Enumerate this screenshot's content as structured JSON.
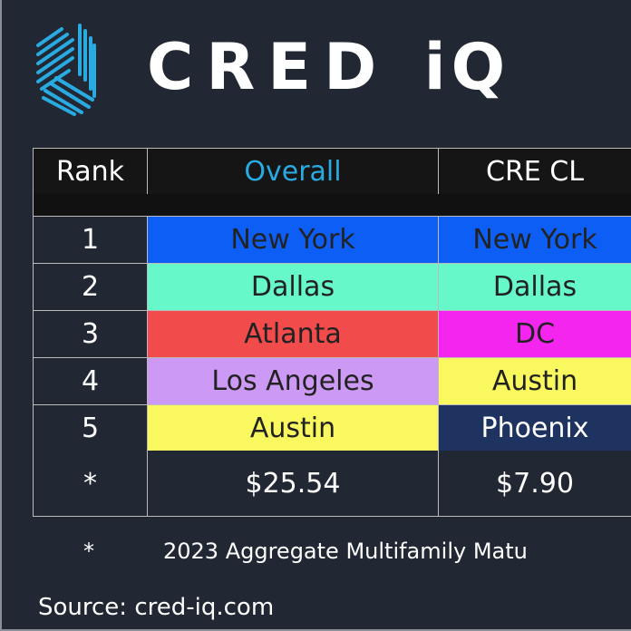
{
  "brand": {
    "name": "CRED iQ",
    "word1": "CRED",
    "word2": "iQ",
    "accent": "#29abe2"
  },
  "table": {
    "headers": [
      "Rank",
      "Overall",
      "CRE CL"
    ],
    "rows": [
      {
        "rank": "1",
        "overall": "New York",
        "overall_color": "#0d5ef4",
        "cre": "New York",
        "cre_color": "#0d5ef4"
      },
      {
        "rank": "2",
        "overall": "Dallas",
        "overall_color": "#66f8c9",
        "cre": "Dallas",
        "cre_color": "#66f8c9"
      },
      {
        "rank": "3",
        "overall": "Atlanta",
        "overall_color": "#f24b4b",
        "cre": "DC",
        "cre_color": "#f425ef"
      },
      {
        "rank": "4",
        "overall": "Los Angeles",
        "overall_color": "#cc99f4",
        "cre": "Austin",
        "cre_color": "#f9f95f"
      },
      {
        "rank": "5",
        "overall": "Austin",
        "overall_color": "#f9f95f",
        "cre": "Phoenix",
        "cre_color": "#1f3360"
      }
    ],
    "total": {
      "rank": "*",
      "overall": "$25.54",
      "cre": "$7.90"
    }
  },
  "footnote": {
    "marker": "*",
    "text": "2023 Aggregate Multifamily Matu"
  },
  "source": "Source: cred-iq.com"
}
